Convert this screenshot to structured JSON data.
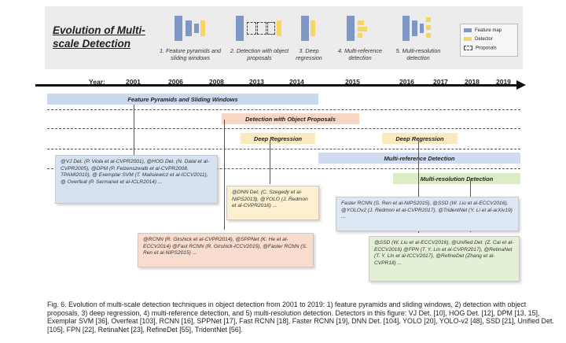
{
  "header": {
    "title": "Evolution of Multi-scale Detection",
    "stages": [
      {
        "label": "1. Feature pyramids and sliding windows"
      },
      {
        "label": "2. Detection with object proposals"
      },
      {
        "label": "3. Deep regression"
      },
      {
        "label": "4. Multi-reference detection"
      },
      {
        "label": "5. Multi-resolution detection"
      }
    ],
    "legend": [
      {
        "label": "Feature map",
        "color": "#7f97c4"
      },
      {
        "label": "Detector",
        "color": "#f3d664"
      },
      {
        "label": "Proposals",
        "color": ""
      }
    ]
  },
  "timeline": {
    "label": "Year:",
    "years": [
      "2001",
      "2006",
      "2008",
      "2013",
      "2014",
      "2015",
      "2016",
      "2017",
      "2018",
      "2019"
    ]
  },
  "bands": [
    {
      "label": "Feature Pyramids and Sliding Windows",
      "color": "#c9d8ec"
    },
    {
      "label": "Detection with Object Proposals",
      "color": "#f8d6c4"
    },
    {
      "label": "Deep Regression",
      "color": "#fbeac0"
    },
    {
      "label": "Deep Regression",
      "color": "#fbeac0"
    },
    {
      "label": "Multi-reference Detection",
      "color": "#cfdcf0"
    },
    {
      "label": "Multi-resolution Detection",
      "color": "#dcedc6"
    }
  ],
  "cards": [
    {
      "text": "@VJ Det. (P. Viola et al-CVPR2001), @HOG Det. (N. Dalal et al-CVPR2005), @DPM (P. Felzenszwalb et al-CVPR2008, TPAMI2010), @ Exemplar SVM (T. Malisiewicz et al-ICCV2011), @ Overfeat (P. Sermanet et al-ICLR2014) ...",
      "color": "#d6e2f2"
    },
    {
      "text": "@DNN Det. (C. Szegedy et al-NIPS2013), @YOLO (J. Redmon et al-CVPR2016) ...",
      "color": "#fcf0cf"
    },
    {
      "text": "@RCNN (R. Girshick et al-CVPR2014), @SPPNet (K. He et al-ECCV2014) @Fast RCNN (R. Girshick-ICCV2015), @Faster RCNN (S. Ren et al-NIPS2015) ...",
      "color": "#f9dccd"
    },
    {
      "text": "Faster RCNN (S. Ren et al-NIPS2015), @SSD (W. Liu et al-ECCV2016), @YOLOv2 (J. Redmon et al-CVPR2017), @TridentNet (Y. Li et al-arXiv19) ...",
      "color": "#dde7f4"
    },
    {
      "text": "@SSD (W. Liu et al-ECCV2016), @Unified Det. (Z. Cai et al-ECCV2016) @FPN (T. Y. Lin et al-CVPR2017), @RetinaNet (T. Y. Lin et al-ICCV2017), @RefineDet (Zhang et al-CVPR18) ...",
      "color": "#e4f0d6"
    }
  ],
  "caption": "Fig. 6.  Evolution of multi-scale detection techniques in object detection from 2001 to 2019: 1) feature pyramids and sliding windows, 2) detection with object proposals, 3) deep regression, 4) multi-reference detection, and 5) multi-resolution detection. Detectors in this figure: VJ Det. [10], HOG Det. [12], DPM [13, 15], Exemplar SVM [36], Overfeat [103], RCNN [16], SPPNet [17], Fast RCNN [18], Faster RCNN [19], DNN Det. [104], YOLO [20], YOLO-v2 [48], SSD [21], Unified Det. [105], FPN [22], RetinaNet [23], RefineDet [55], TridentNet [56]."
}
